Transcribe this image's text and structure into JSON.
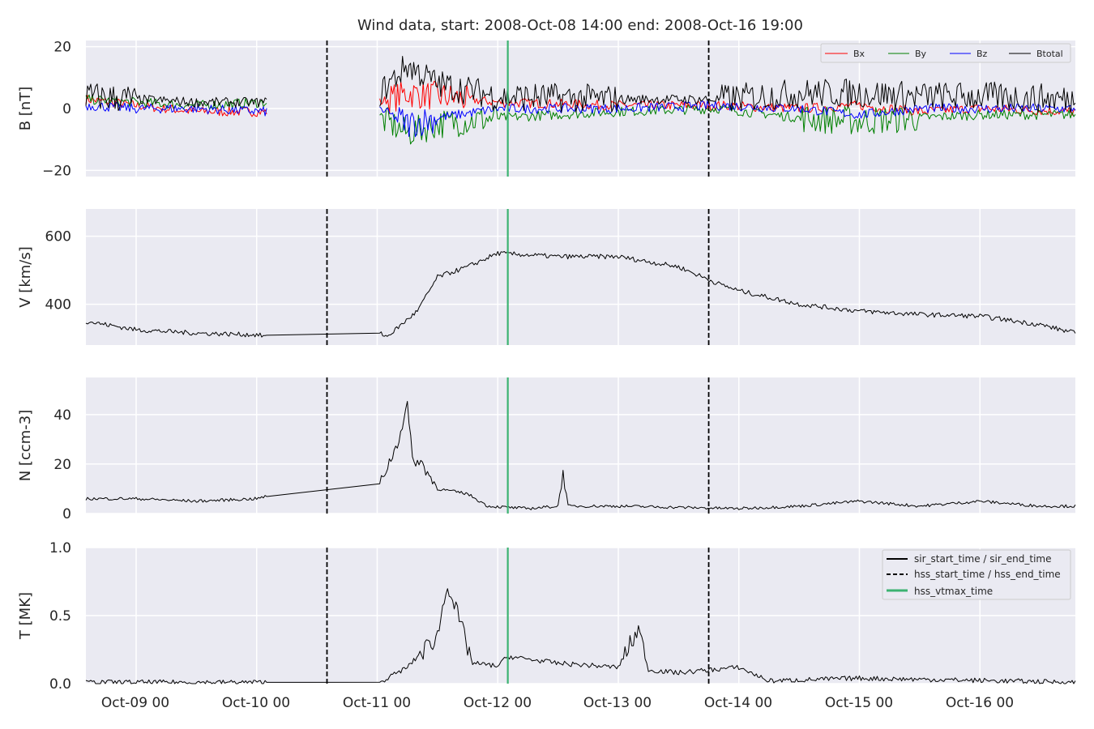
{
  "figure": {
    "title": "Wind data, start: 2008-Oct-08 14:00  end: 2008-Oct-16 19:00"
  },
  "colors": {
    "panel_bg": "#eaeaf2",
    "grid": "#ffffff",
    "bx": "#ff0000",
    "by": "#008000",
    "bz": "#0000ff",
    "btotal": "#000000",
    "event_line": "#000000",
    "vtmax_line": "#3cb371"
  },
  "chart_data": [
    {
      "type": "line",
      "panel": "B",
      "ylabel": "B [nT]",
      "ylim": [
        -22,
        22
      ],
      "yticks": [
        -20,
        0,
        20
      ],
      "ytick_labels": [
        "−20",
        "0",
        "20"
      ],
      "legend": {
        "placement": "top-right",
        "entries": [
          "Bx",
          "By",
          "Bz",
          "Btotal"
        ]
      },
      "data_gap": [
        "2008-10-10 02:00",
        "2008-10-11 00:30"
      ],
      "series": [
        {
          "name": "Bx",
          "x": [
            "2008-10-08 14:00",
            "2008-10-09 00:00",
            "2008-10-09 12:00",
            "2008-10-10 02:00",
            "2008-10-11 00:30",
            "2008-10-11 06:00",
            "2008-10-11 12:00",
            "2008-10-12 00:00",
            "2008-10-13 00:00",
            "2008-10-13 20:00",
            "2008-10-14 12:00",
            "2008-10-15 00:00",
            "2008-10-15 12:00",
            "2008-10-16 00:00",
            "2008-10-16 19:00"
          ],
          "values": [
            3,
            1,
            -1,
            -1,
            2,
            5,
            4,
            2,
            1,
            1,
            0,
            1,
            -1,
            0,
            -1
          ]
        },
        {
          "name": "By",
          "x": [
            "2008-10-08 14:00",
            "2008-10-09 00:00",
            "2008-10-09 12:00",
            "2008-10-10 02:00",
            "2008-10-11 00:30",
            "2008-10-11 06:00",
            "2008-10-11 12:00",
            "2008-10-12 00:00",
            "2008-10-13 00:00",
            "2008-10-13 20:00",
            "2008-10-14 12:00",
            "2008-10-15 00:00",
            "2008-10-15 12:00",
            "2008-10-16 00:00",
            "2008-10-16 19:00"
          ],
          "values": [
            3,
            2,
            1,
            2,
            -3,
            -8,
            -5,
            -3,
            -1,
            0,
            -3,
            -4,
            -3,
            -2,
            -2
          ]
        },
        {
          "name": "Bz",
          "x": [
            "2008-10-08 14:00",
            "2008-10-09 00:00",
            "2008-10-09 12:00",
            "2008-10-10 02:00",
            "2008-10-11 00:30",
            "2008-10-11 06:00",
            "2008-10-11 12:00",
            "2008-10-12 00:00",
            "2008-10-13 00:00",
            "2008-10-13 20:00",
            "2008-10-14 12:00",
            "2008-10-15 00:00",
            "2008-10-15 12:00",
            "2008-10-16 00:00",
            "2008-10-16 19:00"
          ],
          "values": [
            1,
            0,
            0,
            -1,
            0,
            -5,
            -3,
            0,
            0,
            1,
            0,
            -2,
            0,
            0,
            0
          ]
        },
        {
          "name": "Btotal",
          "x": [
            "2008-10-08 14:00",
            "2008-10-09 00:00",
            "2008-10-09 12:00",
            "2008-10-10 02:00",
            "2008-10-11 00:30",
            "2008-10-11 06:00",
            "2008-10-11 12:00",
            "2008-10-12 00:00",
            "2008-10-13 00:00",
            "2008-10-13 20:00",
            "2008-10-14 12:00",
            "2008-10-15 00:00",
            "2008-10-15 12:00",
            "2008-10-16 00:00",
            "2008-10-16 19:00"
          ],
          "values": [
            4,
            3,
            2,
            2,
            5,
            14,
            8,
            4,
            3,
            3,
            5,
            5,
            4,
            4,
            3
          ]
        }
      ]
    },
    {
      "type": "line",
      "panel": "V",
      "ylabel": "V [km/s]",
      "ylim": [
        280,
        680
      ],
      "yticks": [
        400,
        600
      ],
      "ytick_labels": [
        "400",
        "600"
      ],
      "series": [
        {
          "x": [
            "2008-10-08 14:00",
            "2008-10-09 00:00",
            "2008-10-09 12:00",
            "2008-10-10 00:00",
            "2008-10-10 02:00",
            "2008-10-11 00:30",
            "2008-10-11 02:00",
            "2008-10-11 08:00",
            "2008-10-11 12:00",
            "2008-10-11 18:00",
            "2008-10-12 00:00",
            "2008-10-12 12:00",
            "2008-10-13 00:00",
            "2008-10-13 12:00",
            "2008-10-13 20:00",
            "2008-10-14 00:00",
            "2008-10-14 12:00",
            "2008-10-15 00:00",
            "2008-10-15 12:00",
            "2008-10-16 00:00",
            "2008-10-16 12:00",
            "2008-10-16 19:00"
          ],
          "values": [
            350,
            325,
            315,
            310,
            305,
            315,
            305,
            380,
            480,
            510,
            550,
            540,
            540,
            510,
            460,
            440,
            400,
            380,
            370,
            365,
            340,
            315
          ]
        }
      ]
    },
    {
      "type": "line",
      "panel": "N",
      "ylabel": "N [ccm-3]",
      "ylim": [
        0,
        55
      ],
      "yticks": [
        0,
        20,
        40
      ],
      "ytick_labels": [
        "0",
        "20",
        "40"
      ],
      "series": [
        {
          "x": [
            "2008-10-08 14:00",
            "2008-10-09 00:00",
            "2008-10-09 12:00",
            "2008-10-10 00:00",
            "2008-10-10 02:00",
            "2008-10-11 00:30",
            "2008-10-11 04:00",
            "2008-10-11 06:00",
            "2008-10-11 07:00",
            "2008-10-11 09:00",
            "2008-10-11 12:00",
            "2008-10-11 18:00",
            "2008-10-11 22:00",
            "2008-10-12 06:00",
            "2008-10-12 12:00",
            "2008-10-12 13:00",
            "2008-10-12 14:00",
            "2008-10-13 00:00",
            "2008-10-14 00:00",
            "2008-10-14 12:00",
            "2008-10-15 00:00",
            "2008-10-15 12:00",
            "2008-10-16 00:00",
            "2008-10-16 12:00",
            "2008-10-16 19:00"
          ],
          "values": [
            6,
            6,
            5,
            6,
            7,
            12,
            28,
            44,
            22,
            20,
            10,
            8,
            3,
            2,
            3,
            17,
            3,
            3,
            2,
            3,
            5,
            3,
            5,
            3,
            3
          ]
        }
      ]
    },
    {
      "type": "line",
      "panel": "T",
      "ylabel": "T [MK]",
      "ylim": [
        0,
        1
      ],
      "yticks": [
        0,
        0.5,
        1
      ],
      "ytick_labels": [
        "0.0",
        "0.5",
        "1.0"
      ],
      "legend": {
        "placement": "top-right",
        "entries": [
          "sir_start_time / sir_end_time",
          "hss_start_time / hss_end_time",
          "hss_vtmax_time"
        ]
      },
      "series": [
        {
          "x": [
            "2008-10-08 14:00",
            "2008-10-10 02:00",
            "2008-10-11 00:30",
            "2008-10-11 06:00",
            "2008-10-11 12:00",
            "2008-10-11 14:00",
            "2008-10-11 16:00",
            "2008-10-11 19:00",
            "2008-10-12 00:00",
            "2008-10-12 02:00",
            "2008-10-12 12:00",
            "2008-10-13 00:00",
            "2008-10-13 04:00",
            "2008-10-13 06:00",
            "2008-10-13 12:00",
            "2008-10-14 00:00",
            "2008-10-14 06:00",
            "2008-10-15 00:00",
            "2008-10-16 19:00"
          ],
          "values": [
            0.01,
            0.01,
            0.01,
            0.12,
            0.35,
            0.75,
            0.5,
            0.15,
            0.13,
            0.2,
            0.15,
            0.12,
            0.4,
            0.1,
            0.08,
            0.12,
            0.02,
            0.04,
            0.01
          ]
        }
      ]
    }
  ],
  "x_axis": {
    "tick_labels": [
      "Oct-09 00",
      "Oct-10 00",
      "Oct-11 00",
      "Oct-12 00",
      "Oct-13 00",
      "Oct-14 00",
      "Oct-15 00",
      "Oct-16 00"
    ],
    "tick_times": [
      "2008-10-09 00:00",
      "2008-10-10 00:00",
      "2008-10-11 00:00",
      "2008-10-12 00:00",
      "2008-10-13 00:00",
      "2008-10-14 00:00",
      "2008-10-15 00:00",
      "2008-10-16 00:00"
    ],
    "range": [
      "2008-10-08 14:00",
      "2008-10-16 19:00"
    ]
  },
  "event_lines": {
    "hss_start_time": "2008-10-10 14:00",
    "hss_end_time": "2008-10-13 18:00",
    "hss_vtmax_time": "2008-10-12 02:00"
  }
}
